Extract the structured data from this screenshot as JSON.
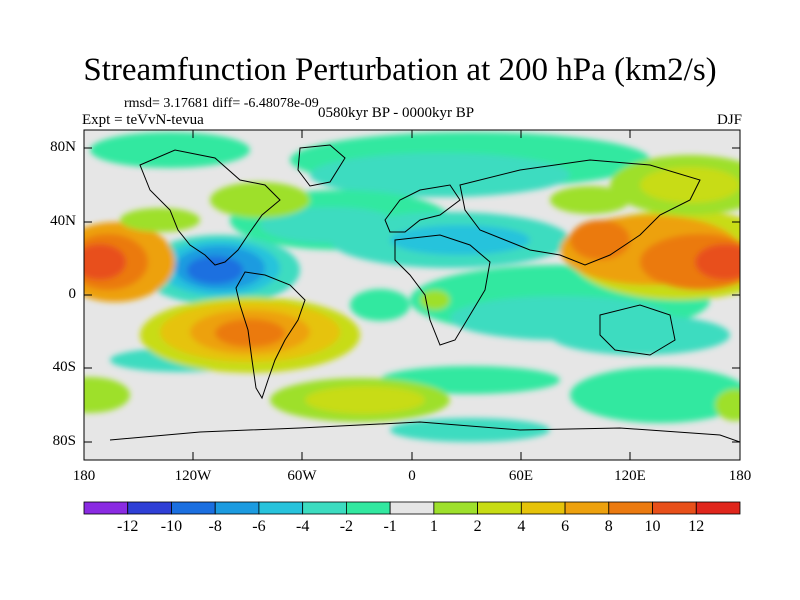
{
  "title": "Streamfunction Perturbation at 200 hPa (km2/s)",
  "stats": "rmsd= 3.17681 diff= -6.48078e-09",
  "experiment": "Expt = teVvN-tevua",
  "period": "0580kyr BP - 0000kyr BP",
  "season": "DJF",
  "y_ticks": [
    "80N",
    "40N",
    "0",
    "40S",
    "80S"
  ],
  "x_ticks": [
    "180",
    "120W",
    "60W",
    "0",
    "60E",
    "120E",
    "180"
  ],
  "colorbar": {
    "labels": [
      "-12",
      "-10",
      "-8",
      "-6",
      "-4",
      "-2",
      "-1",
      "1",
      "2",
      "4",
      "6",
      "8",
      "10",
      "12"
    ],
    "colors": [
      "#8a2be2",
      "#2f3fd6",
      "#1b6fe0",
      "#1c9be0",
      "#27c3dc",
      "#3cdcc0",
      "#32e8a0",
      "#e6e6e6",
      "#9ee02c",
      "#c8dc14",
      "#e6c30a",
      "#eda10e",
      "#eb7a10",
      "#e8501a",
      "#e0261c"
    ]
  }
}
